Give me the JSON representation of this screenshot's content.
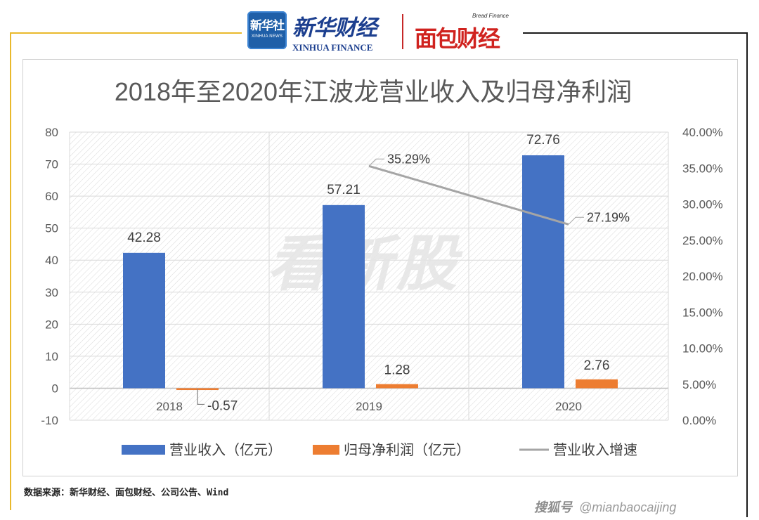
{
  "header": {
    "xinhua_badge_cn": "新华社",
    "xinhua_badge_en": "XINHUA NEWS",
    "xinhua_finance_cn": "新华财经",
    "xinhua_finance_en": "XINHUA FINANCE",
    "mianbao_en": "Bread Finance",
    "mianbao_cn": "面包财经"
  },
  "chart_data": {
    "type": "bar",
    "title": "2018年至2020年江波龙营业收入及归母净利润",
    "categories": [
      "2018",
      "2019",
      "2020"
    ],
    "series": [
      {
        "name": "营业收入（亿元）",
        "kind": "bar",
        "axis": "left",
        "color": "#4472c4",
        "values": [
          42.28,
          57.21,
          72.76
        ],
        "labels": [
          "42.28",
          "57.21",
          "72.76"
        ]
      },
      {
        "name": "归母净利润（亿元）",
        "kind": "bar",
        "axis": "left",
        "color": "#ed7d31",
        "values": [
          -0.57,
          1.28,
          2.76
        ],
        "labels": [
          "-0.57",
          "1.28",
          "2.76"
        ]
      },
      {
        "name": "营业收入增速",
        "kind": "line",
        "axis": "right",
        "color": "#a5a5a5",
        "values": [
          null,
          35.29,
          27.19
        ],
        "labels": [
          "",
          "35.29%",
          "27.19%"
        ]
      }
    ],
    "y_left": {
      "min": -10,
      "max": 80,
      "step": 10,
      "ticks": [
        "-10",
        "0",
        "10",
        "20",
        "30",
        "40",
        "50",
        "60",
        "70",
        "80"
      ]
    },
    "y_right": {
      "min": 0,
      "max": 40,
      "step": 5,
      "ticks": [
        "0.00%",
        "5.00%",
        "10.00%",
        "15.00%",
        "20.00%",
        "25.00%",
        "30.00%",
        "35.00%",
        "40.00%"
      ]
    },
    "legend_position": "bottom",
    "watermark": "看新股"
  },
  "footer": {
    "source": "数据来源：新华财经、面包财经、公司公告、Wind",
    "sohu_brand": "搜狐号",
    "sohu_handle": "@mianbaocaijing"
  }
}
